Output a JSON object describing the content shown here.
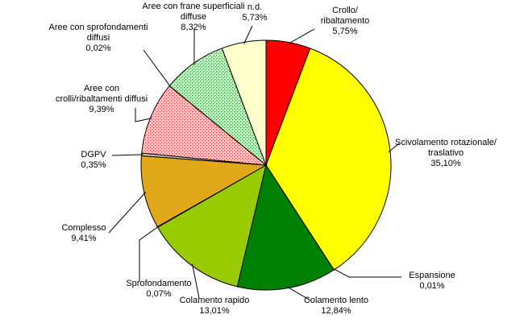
{
  "chart_data": {
    "type": "pie",
    "title": "",
    "start_angle_deg": 0,
    "direction": "clockwise",
    "legend": "none",
    "slices": [
      {
        "label": "Crollo/ ribaltamento",
        "label_lines": [
          "Crollo/",
          "ribaltamento"
        ],
        "value": 5.75,
        "value_text": "5,75%",
        "color": "#ff0000",
        "pattern": "solid"
      },
      {
        "label": "Scivolamento rotazionale/ traslativo",
        "label_lines": [
          "Scivolamento rotazionale/",
          "traslativo"
        ],
        "value": 35.1,
        "value_text": "35,10%",
        "color": "#ffff00",
        "pattern": "solid"
      },
      {
        "label": "Espansione",
        "label_lines": [
          "Espansione"
        ],
        "value": 0.01,
        "value_text": "0,01%",
        "color": "#99cc00",
        "pattern": "solid"
      },
      {
        "label": "Colamento lento",
        "label_lines": [
          "Colamento lento"
        ],
        "value": 12.84,
        "value_text": "12,84%",
        "color": "#008000",
        "pattern": "solid"
      },
      {
        "label": "Colamento rapido",
        "label_lines": [
          "Colamento rapido"
        ],
        "value": 13.01,
        "value_text": "13,01%",
        "color": "#99cc00",
        "pattern": "solid"
      },
      {
        "label": "Sprofondamento",
        "label_lines": [
          "Sprofondamento"
        ],
        "value": 0.07,
        "value_text": "0,07%",
        "color": "#808000",
        "pattern": "solid"
      },
      {
        "label": "Complesso",
        "label_lines": [
          "Complesso"
        ],
        "value": 9.41,
        "value_text": "9,41%",
        "color": "#e0a818",
        "pattern": "solid"
      },
      {
        "label": "DGPV",
        "label_lines": [
          "DGPV"
        ],
        "value": 0.35,
        "value_text": "0,35%",
        "color": "#c8c8c8",
        "pattern": "solid"
      },
      {
        "label": "Aree con crolli/ribaltamenti diffusi",
        "label_lines": [
          "Aree con",
          "crolli/ribaltamenti diffusi"
        ],
        "value": 9.39,
        "value_text": "9,39%",
        "color": "#cc3333",
        "pattern": "dots"
      },
      {
        "label": "Aree con sprofondamenti diffusi",
        "label_lines": [
          "Aree con sprofondamenti",
          "diffusi"
        ],
        "value": 0.02,
        "value_text": "0,02%",
        "color": "#808000",
        "pattern": "dots"
      },
      {
        "label": "Aree con frane superficiali diffuse",
        "label_lines": [
          "Aree con frane superficiali",
          "diffuse"
        ],
        "value": 8.32,
        "value_text": "8,32%",
        "color": "#2e8b2e",
        "pattern": "dots"
      },
      {
        "label": "n.d.",
        "label_lines": [
          "n.d."
        ],
        "value": 5.73,
        "value_text": "5,73%",
        "color": "#ffffcc",
        "pattern": "solid"
      }
    ]
  }
}
